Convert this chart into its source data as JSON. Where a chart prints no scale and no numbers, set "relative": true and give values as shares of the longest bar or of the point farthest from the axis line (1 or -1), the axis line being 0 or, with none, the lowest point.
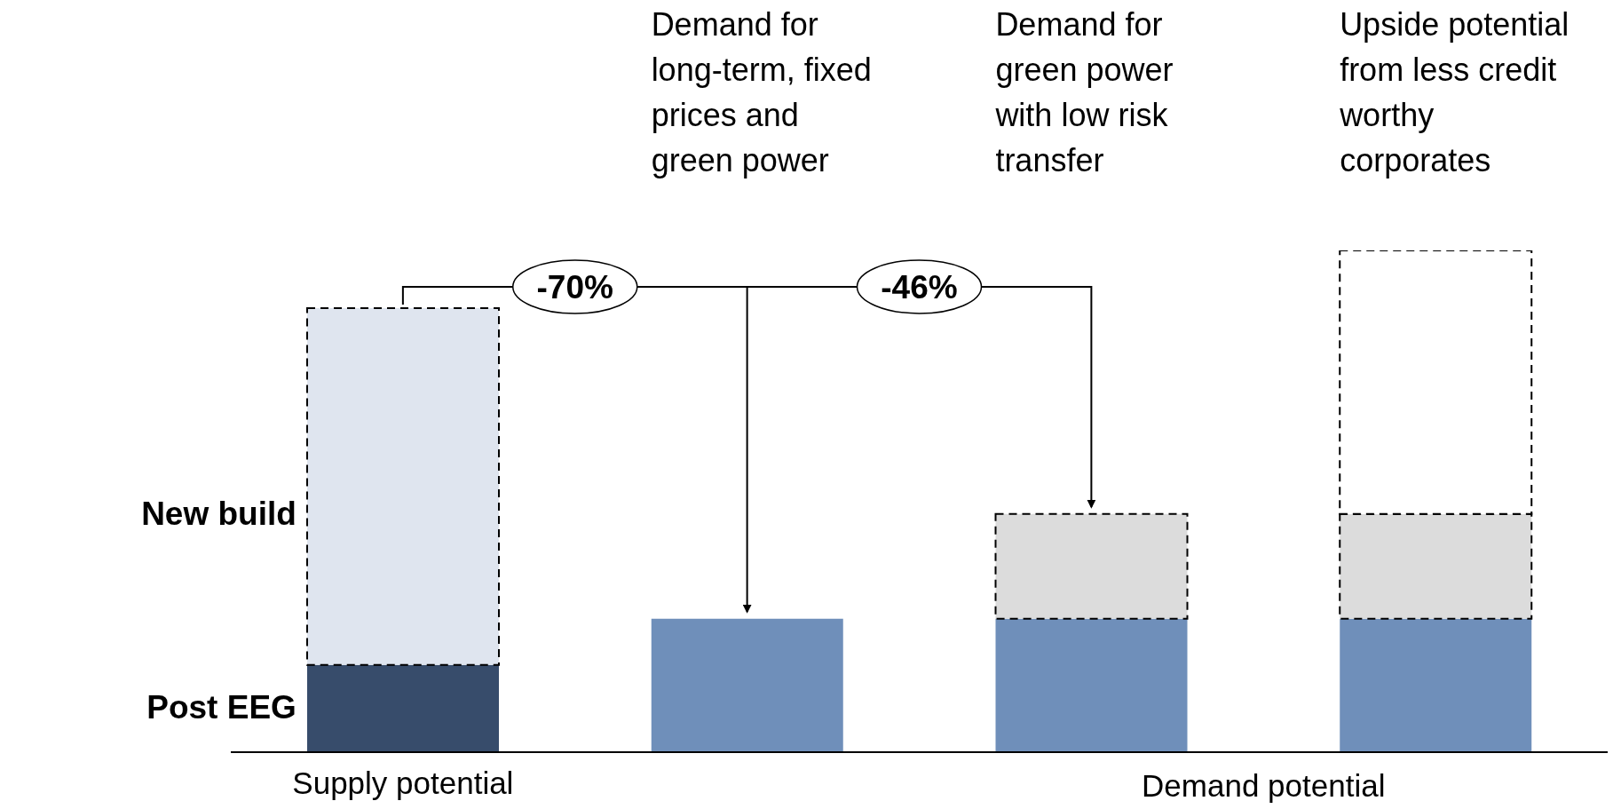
{
  "chart_data": {
    "type": "bar",
    "stacked": true,
    "relative": true,
    "categories": [
      "Supply potential",
      null,
      null,
      null
    ],
    "series": [
      {
        "name": "Post EEG",
        "colors": [
          "#374c6b",
          "#6f8fba",
          "#6f8fba",
          "#6f8fba"
        ],
        "values": [
          0.174,
          0.266,
          0.266,
          0.266
        ]
      },
      {
        "name": "New build",
        "colors": [
          "#dfe5ef",
          null,
          "#dcdcdc",
          "#dcdcdc"
        ],
        "line_style": "dashed",
        "values": [
          0.711,
          null,
          0.209,
          0.209
        ]
      },
      {
        "colors": [
          null,
          null,
          null,
          "#ffffff"
        ],
        "line_style": "dashed",
        "values": [
          null,
          null,
          null,
          0.525
        ]
      }
    ],
    "annotations": [
      "Demand for long-term, fixed prices and green power",
      "Demand for green power with low risk transfer",
      "Upside potential from less credit worthy corporates",
      "-70%",
      "-46%",
      "Demand potential"
    ],
    "legend": false,
    "grid": false
  }
}
